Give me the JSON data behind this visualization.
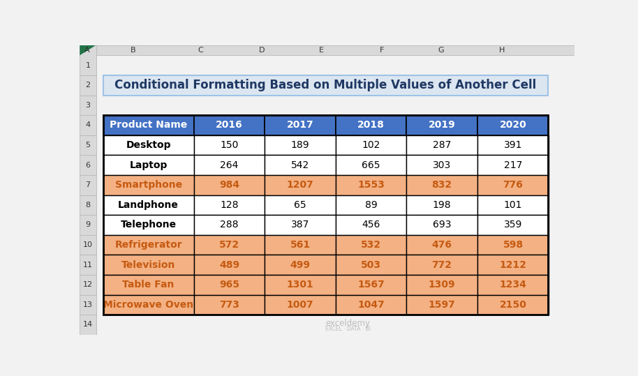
{
  "title": "Conditional Formatting Based on Multiple Values of Another Cell",
  "title_bg": "#dce6f1",
  "title_color": "#1f3864",
  "title_border": "#9dc3e6",
  "header_bg": "#4472c4",
  "header_text_color": "#ffffff",
  "headers": [
    "Product Name",
    "2016",
    "2017",
    "2018",
    "2019",
    "2020"
  ],
  "rows": [
    [
      "Desktop",
      150,
      189,
      102,
      287,
      391
    ],
    [
      "Laptop",
      264,
      542,
      665,
      303,
      217
    ],
    [
      "Smartphone",
      984,
      1207,
      1553,
      832,
      776
    ],
    [
      "Landphone",
      128,
      65,
      89,
      198,
      101
    ],
    [
      "Telephone",
      288,
      387,
      456,
      693,
      359
    ],
    [
      "Refrigerator",
      572,
      561,
      532,
      476,
      598
    ],
    [
      "Television",
      489,
      499,
      503,
      772,
      1212
    ],
    [
      "Table Fan",
      965,
      1301,
      1567,
      1309,
      1234
    ],
    [
      "Microwave Oven",
      773,
      1007,
      1047,
      1597,
      2150
    ]
  ],
  "highlight_color": "#f4b183",
  "normal_bg": "#ffffff",
  "cell_text_color": "#000000",
  "highlight_text_color": "#c55a11",
  "grid_color": "#000000",
  "bg_color": "#f2f2f2",
  "col_header_bg": "#d9d9d9",
  "col_header_border": "#b0b0b0",
  "col_labels": [
    "A",
    "B",
    "C",
    "D",
    "E",
    "F",
    "G",
    "H"
  ],
  "row_labels": [
    "1",
    "2",
    "3",
    "4",
    "5",
    "6",
    "7",
    "8",
    "9",
    "10",
    "11",
    "12",
    "13",
    "14"
  ],
  "cell_highlight": {
    "2_0": true,
    "2_1": true,
    "2_2": true,
    "2_3": true,
    "2_4": true,
    "2_5": true,
    "5_0": true,
    "5_1": true,
    "5_2": true,
    "5_3": true,
    "5_4": true,
    "5_5": true,
    "6_0": true,
    "6_1": true,
    "6_2": true,
    "6_3": true,
    "6_4": true,
    "6_5": true,
    "7_0": true,
    "7_1": true,
    "7_2": true,
    "7_3": true,
    "7_4": true,
    "7_5": true,
    "8_0": true,
    "8_1": true,
    "8_2": true,
    "8_3": true,
    "8_4": true,
    "8_5": true
  },
  "corner_color": "#217346",
  "watermark_text": "exceldemy",
  "watermark_sub": "EXCEL · DATA · BI"
}
